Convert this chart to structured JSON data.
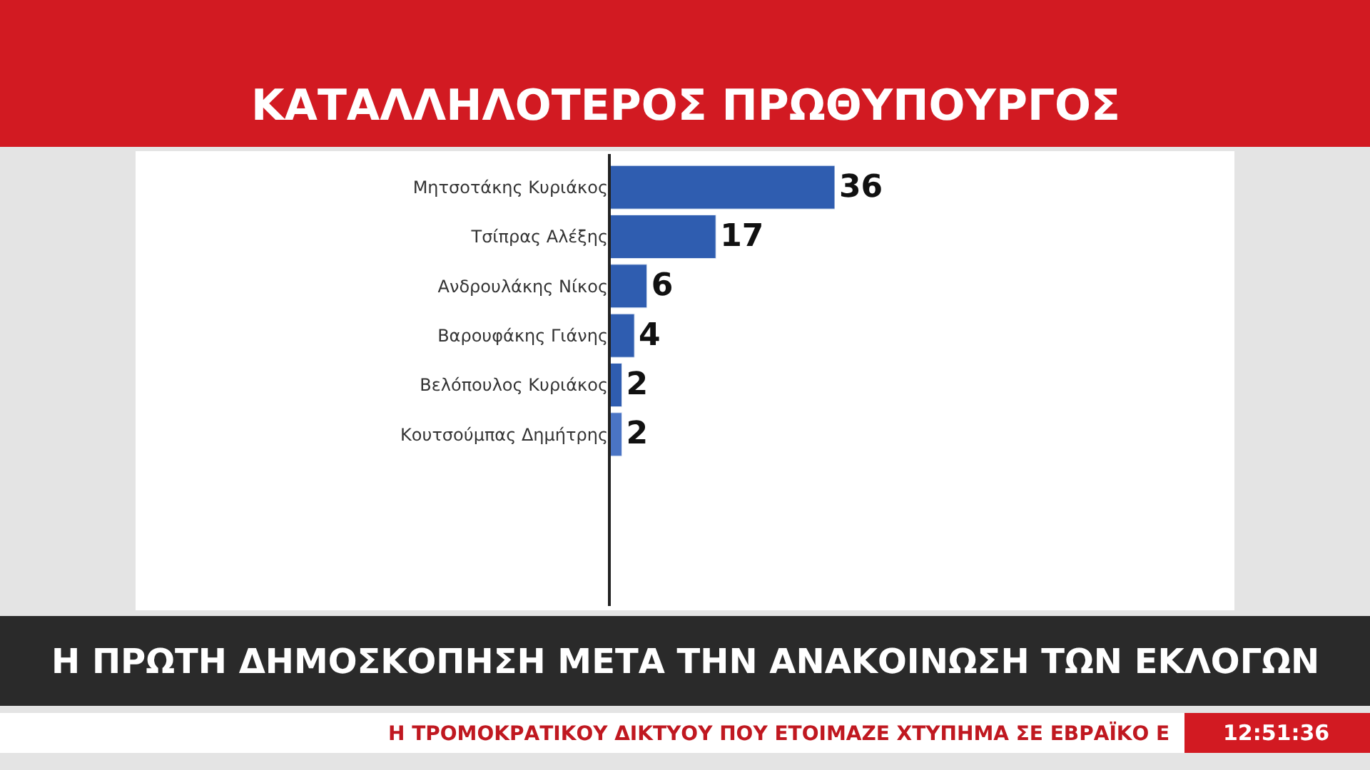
{
  "chart_data": {
    "type": "bar",
    "orientation": "horizontal",
    "title": "ΚΑΤΑΛΛΗΛΟΤΕΡΟΣ ΠΡΩΘΥΠΟΥΡΓΟΣ",
    "subtitle": "Η ΠΡΩΤΗ ΔΗΜΟΣΚΟΠΗΣΗ ΜΕΤΑ ΤΗΝ ΑΝΑΚΟΙΝΩΣΗ ΤΩΝ ΕΚΛΟΓΩΝ",
    "categories": [
      "Μητσοτάκης Κυριάκος",
      "Τσίπρας Αλέξης",
      "Ανδρουλάκης Νίκος",
      "Βαρουφάκης Γιάνης",
      "Βελόπουλος Κυριάκος",
      "Κουτσούμπας Δημήτρης"
    ],
    "values": [
      36,
      17,
      6,
      4,
      2,
      2
    ],
    "colors": [
      "#2f5db0",
      "#2f5db0",
      "#2f5db0",
      "#2f5db0",
      "#2f5db0",
      "#4a74c4"
    ],
    "data_labels": true,
    "legend": false,
    "annotations": [
      "Η ΤΡΟΜΟΚΡΑΤΙΚΟΥ ΔΙΚΤΥΟΥ ΠΟΥ ΕΤΟΙΜΑΖΕ ΧΤΥΠΗΜΑ ΣΕ ΕΒΡΑΪΚΟ Ε",
      "12:51:36"
    ]
  }
}
